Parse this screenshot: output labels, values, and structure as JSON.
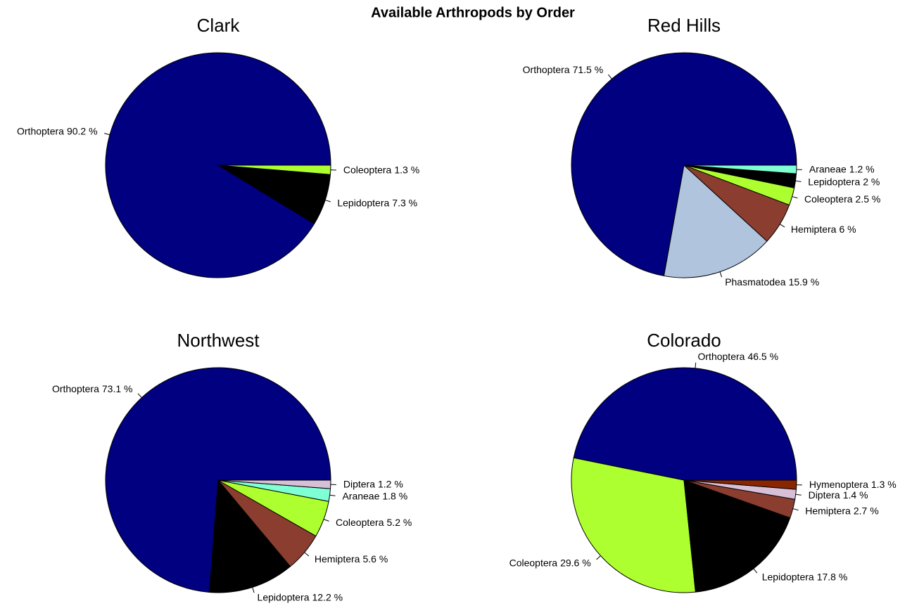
{
  "title": "Available Arthropods by Order",
  "chart_data": [
    {
      "type": "pie",
      "title": "Clark",
      "categories": [
        "Orthoptera",
        "Lepidoptera",
        "Coleoptera"
      ],
      "values": [
        90.2,
        7.3,
        1.3
      ],
      "value_labels": [
        "90.2 %",
        "7.3 %",
        "1.3 %"
      ],
      "colors": [
        "#000080",
        "#000000",
        "#adff2f"
      ]
    },
    {
      "type": "pie",
      "title": "Red Hills",
      "categories": [
        "Orthoptera",
        "Phasmatodea",
        "Hemiptera",
        "Coleoptera",
        "Lepidoptera",
        "Araneae"
      ],
      "values": [
        71.5,
        15.9,
        6,
        2.5,
        2,
        1.2
      ],
      "value_labels": [
        "71.5 %",
        "15.9 %",
        "6 %",
        "2.5 %",
        "2 %",
        "1.2 %"
      ],
      "colors": [
        "#000080",
        "#b0c4de",
        "#8b3e2f",
        "#adff2f",
        "#000000",
        "#7fffd4"
      ]
    },
    {
      "type": "pie",
      "title": "Northwest",
      "categories": [
        "Orthoptera",
        "Lepidoptera",
        "Hemiptera",
        "Coleoptera",
        "Araneae",
        "Diptera"
      ],
      "values": [
        73.1,
        12.2,
        5.6,
        5.2,
        1.8,
        1.2
      ],
      "value_labels": [
        "73.1 %",
        "12.2 %",
        "5.6 %",
        "5.2 %",
        "1.8 %",
        "1.2 %"
      ],
      "colors": [
        "#000080",
        "#000000",
        "#8b3e2f",
        "#adff2f",
        "#7fffd4",
        "#d8bfd8"
      ]
    },
    {
      "type": "pie",
      "title": "Colorado",
      "categories": [
        "Orthoptera",
        "Coleoptera",
        "Lepidoptera",
        "Hemiptera",
        "Diptera",
        "Hymenoptera"
      ],
      "values": [
        46.5,
        29.6,
        17.8,
        2.7,
        1.4,
        1.3
      ],
      "value_labels": [
        "46.5 %",
        "29.6 %",
        "17.8 %",
        "2.7 %",
        "1.4 %",
        "1.3 %"
      ],
      "colors": [
        "#000080",
        "#adff2f",
        "#000000",
        "#8b3e2f",
        "#d8bfd8",
        "#8b2500"
      ]
    }
  ]
}
